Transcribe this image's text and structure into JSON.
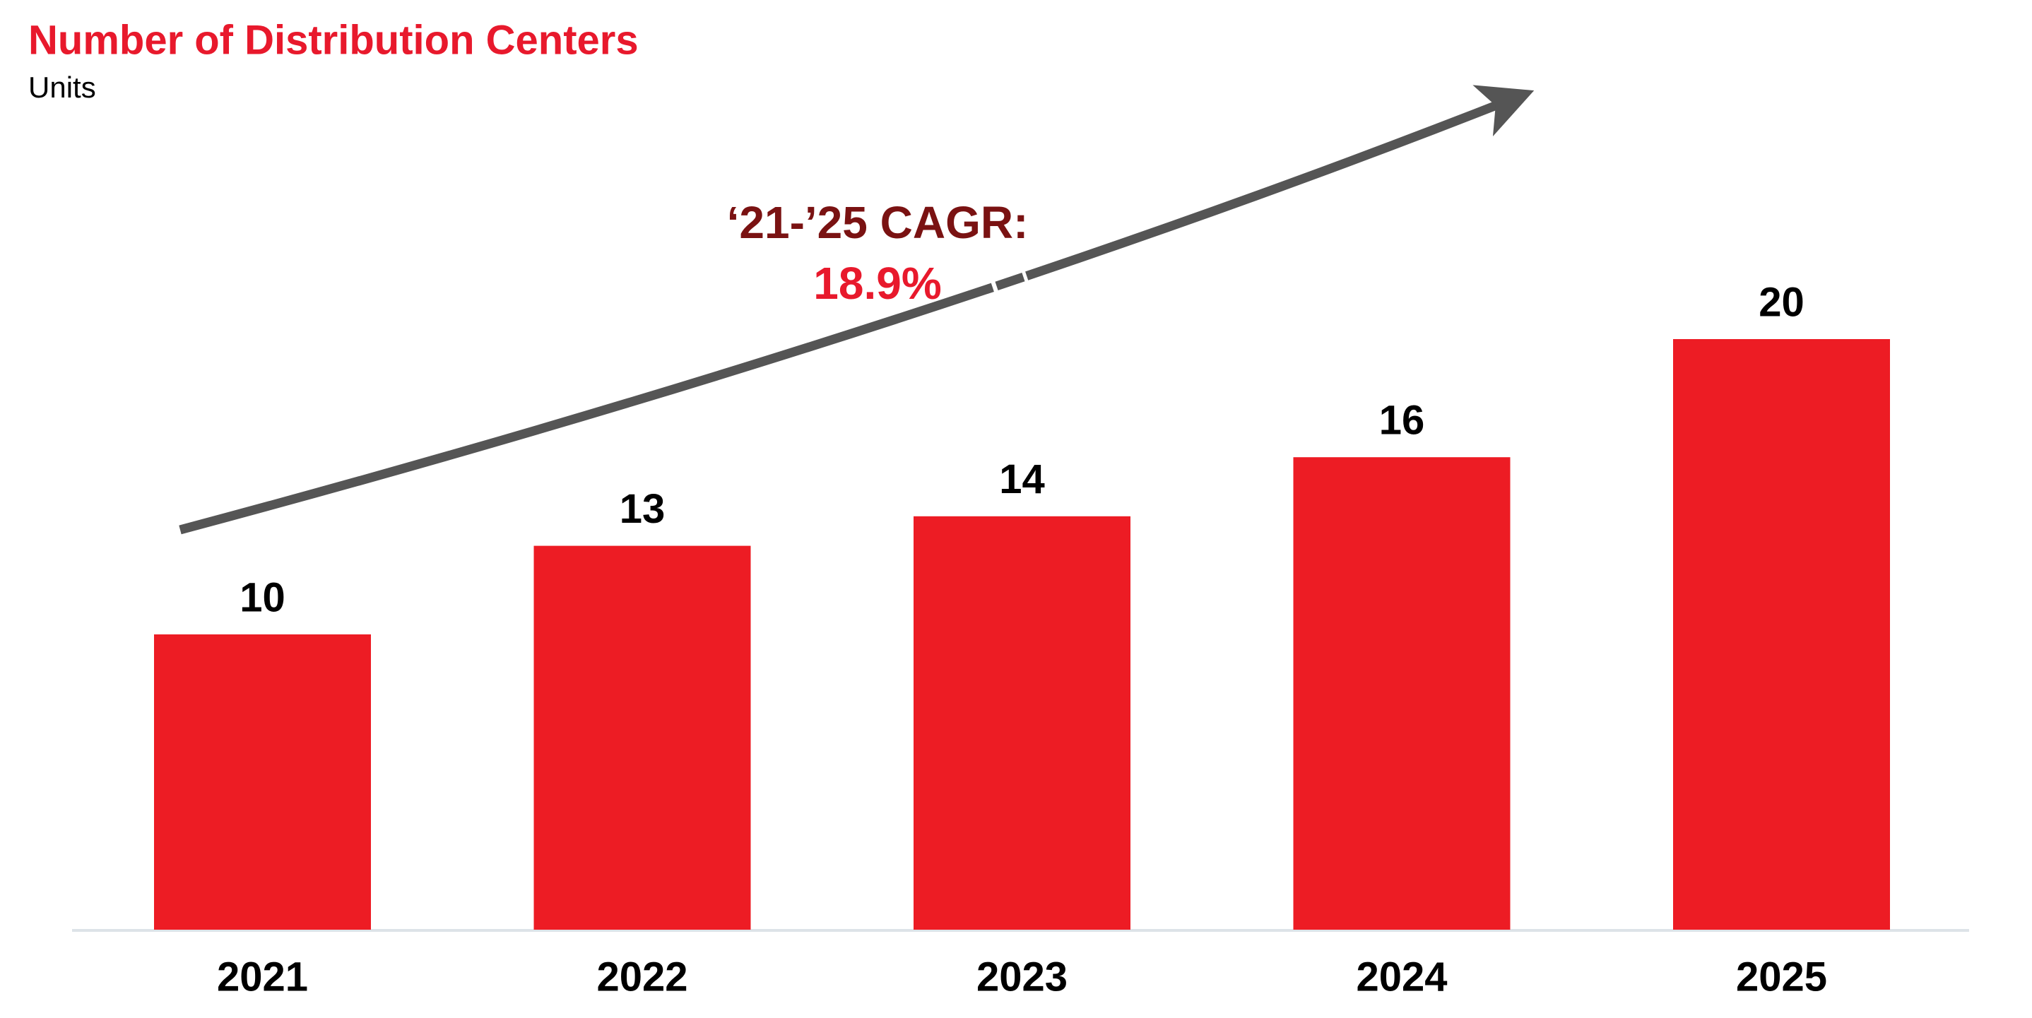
{
  "chart_data": {
    "type": "bar",
    "title": "Number of Distribution Centers",
    "subtitle": "Units",
    "categories": [
      "2021",
      "2022",
      "2023",
      "2024",
      "2025"
    ],
    "values": [
      10,
      13,
      14,
      16,
      20
    ],
    "color": "#ed1c24",
    "annotations": [
      "‘21-’25 CAGR:",
      "18.9%"
    ]
  }
}
